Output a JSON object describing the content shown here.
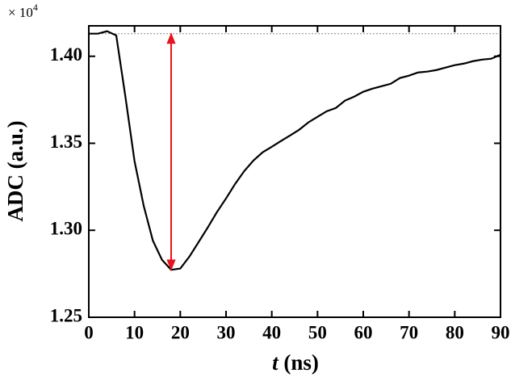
{
  "chart_data": {
    "type": "line",
    "xlabel_var": "t",
    "xlabel_unit": "(ns)",
    "ylabel": "ADC (a.u.)",
    "multiplier": "× 10",
    "multiplier_exponent": "4",
    "x": [
      0,
      2,
      4,
      6,
      8,
      10,
      12,
      14,
      16,
      18,
      20,
      22,
      24,
      26,
      28,
      30,
      32,
      34,
      36,
      38,
      40,
      42,
      44,
      46,
      48,
      50,
      52,
      54,
      56,
      58,
      60,
      62,
      64,
      66,
      68,
      70,
      72,
      74,
      76,
      78,
      80,
      82,
      84,
      86,
      88,
      90
    ],
    "series": [
      {
        "color": "#000000",
        "values": [
          1.413,
          1.413,
          1.4144,
          1.412,
          1.3768,
          1.3397,
          1.3141,
          1.2941,
          1.283,
          1.2773,
          1.278,
          1.2849,
          1.2932,
          1.3016,
          1.3104,
          1.3183,
          1.3267,
          1.3341,
          1.3401,
          1.3448,
          1.348,
          1.3513,
          1.3545,
          1.3578,
          1.362,
          1.3652,
          1.3684,
          1.3703,
          1.3745,
          1.3768,
          1.3796,
          1.3814,
          1.3828,
          1.3842,
          1.3875,
          1.3889,
          1.3907,
          1.3912,
          1.3921,
          1.3935,
          1.3949,
          1.3958,
          1.3972,
          1.3981,
          1.3986,
          1.4009
        ]
      }
    ],
    "reference_line": 1.413,
    "reference_color": "#888888",
    "arrow": {
      "x": 18,
      "from": 1.2773,
      "to": 1.413,
      "color": "#e8141c"
    },
    "xlim": [
      0,
      90
    ],
    "ylim": [
      1.25,
      1.4175
    ],
    "xticks": [
      0,
      10,
      20,
      30,
      40,
      50,
      60,
      70,
      80,
      90
    ],
    "yticks": [
      1.25,
      {
        "value": 1.3,
        "label": "1.30"
      },
      1.35,
      {
        "value": 1.4,
        "label": "1.40"
      }
    ]
  }
}
